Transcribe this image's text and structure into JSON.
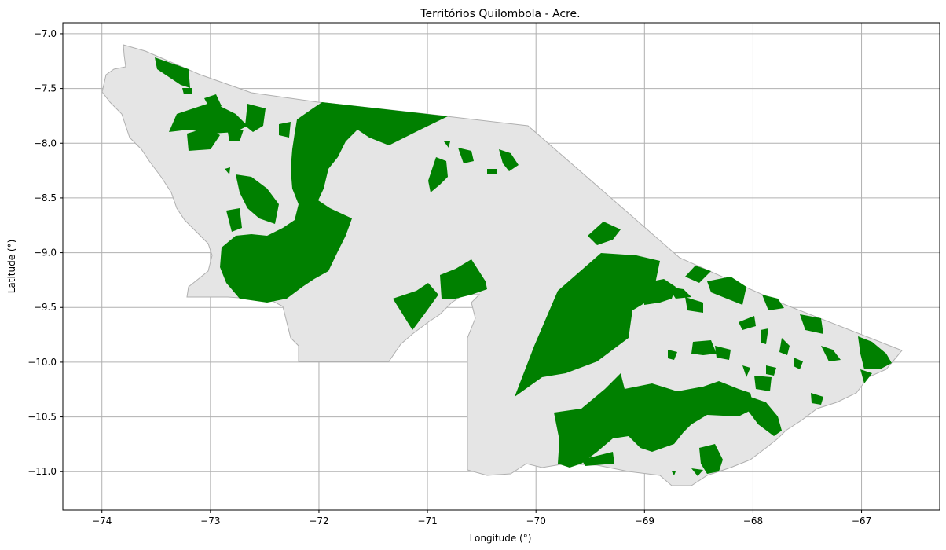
{
  "chart_data": {
    "type": "map",
    "title": "Territórios Quilombola - Acre.",
    "xlabel": "Longitude (°)",
    "ylabel": "Latitude (°)",
    "xlim": [
      -74.36,
      -66.28
    ],
    "ylim": [
      -11.35,
      -6.9
    ],
    "grid": true,
    "x_ticks": [
      "−74",
      "−73",
      "−72",
      "−71",
      "−70",
      "−69",
      "−68",
      "−67"
    ],
    "y_ticks": [
      "−7.0",
      "−7.5",
      "−8.0",
      "−8.5",
      "−9.0",
      "−9.5",
      "−10.0",
      "−10.5",
      "−11.0"
    ],
    "colors": {
      "territory_fill": "#008000",
      "state_fill": "#e5e5e5",
      "state_edge": "#b0b0b0",
      "grid": "#b0b0b0"
    }
  }
}
